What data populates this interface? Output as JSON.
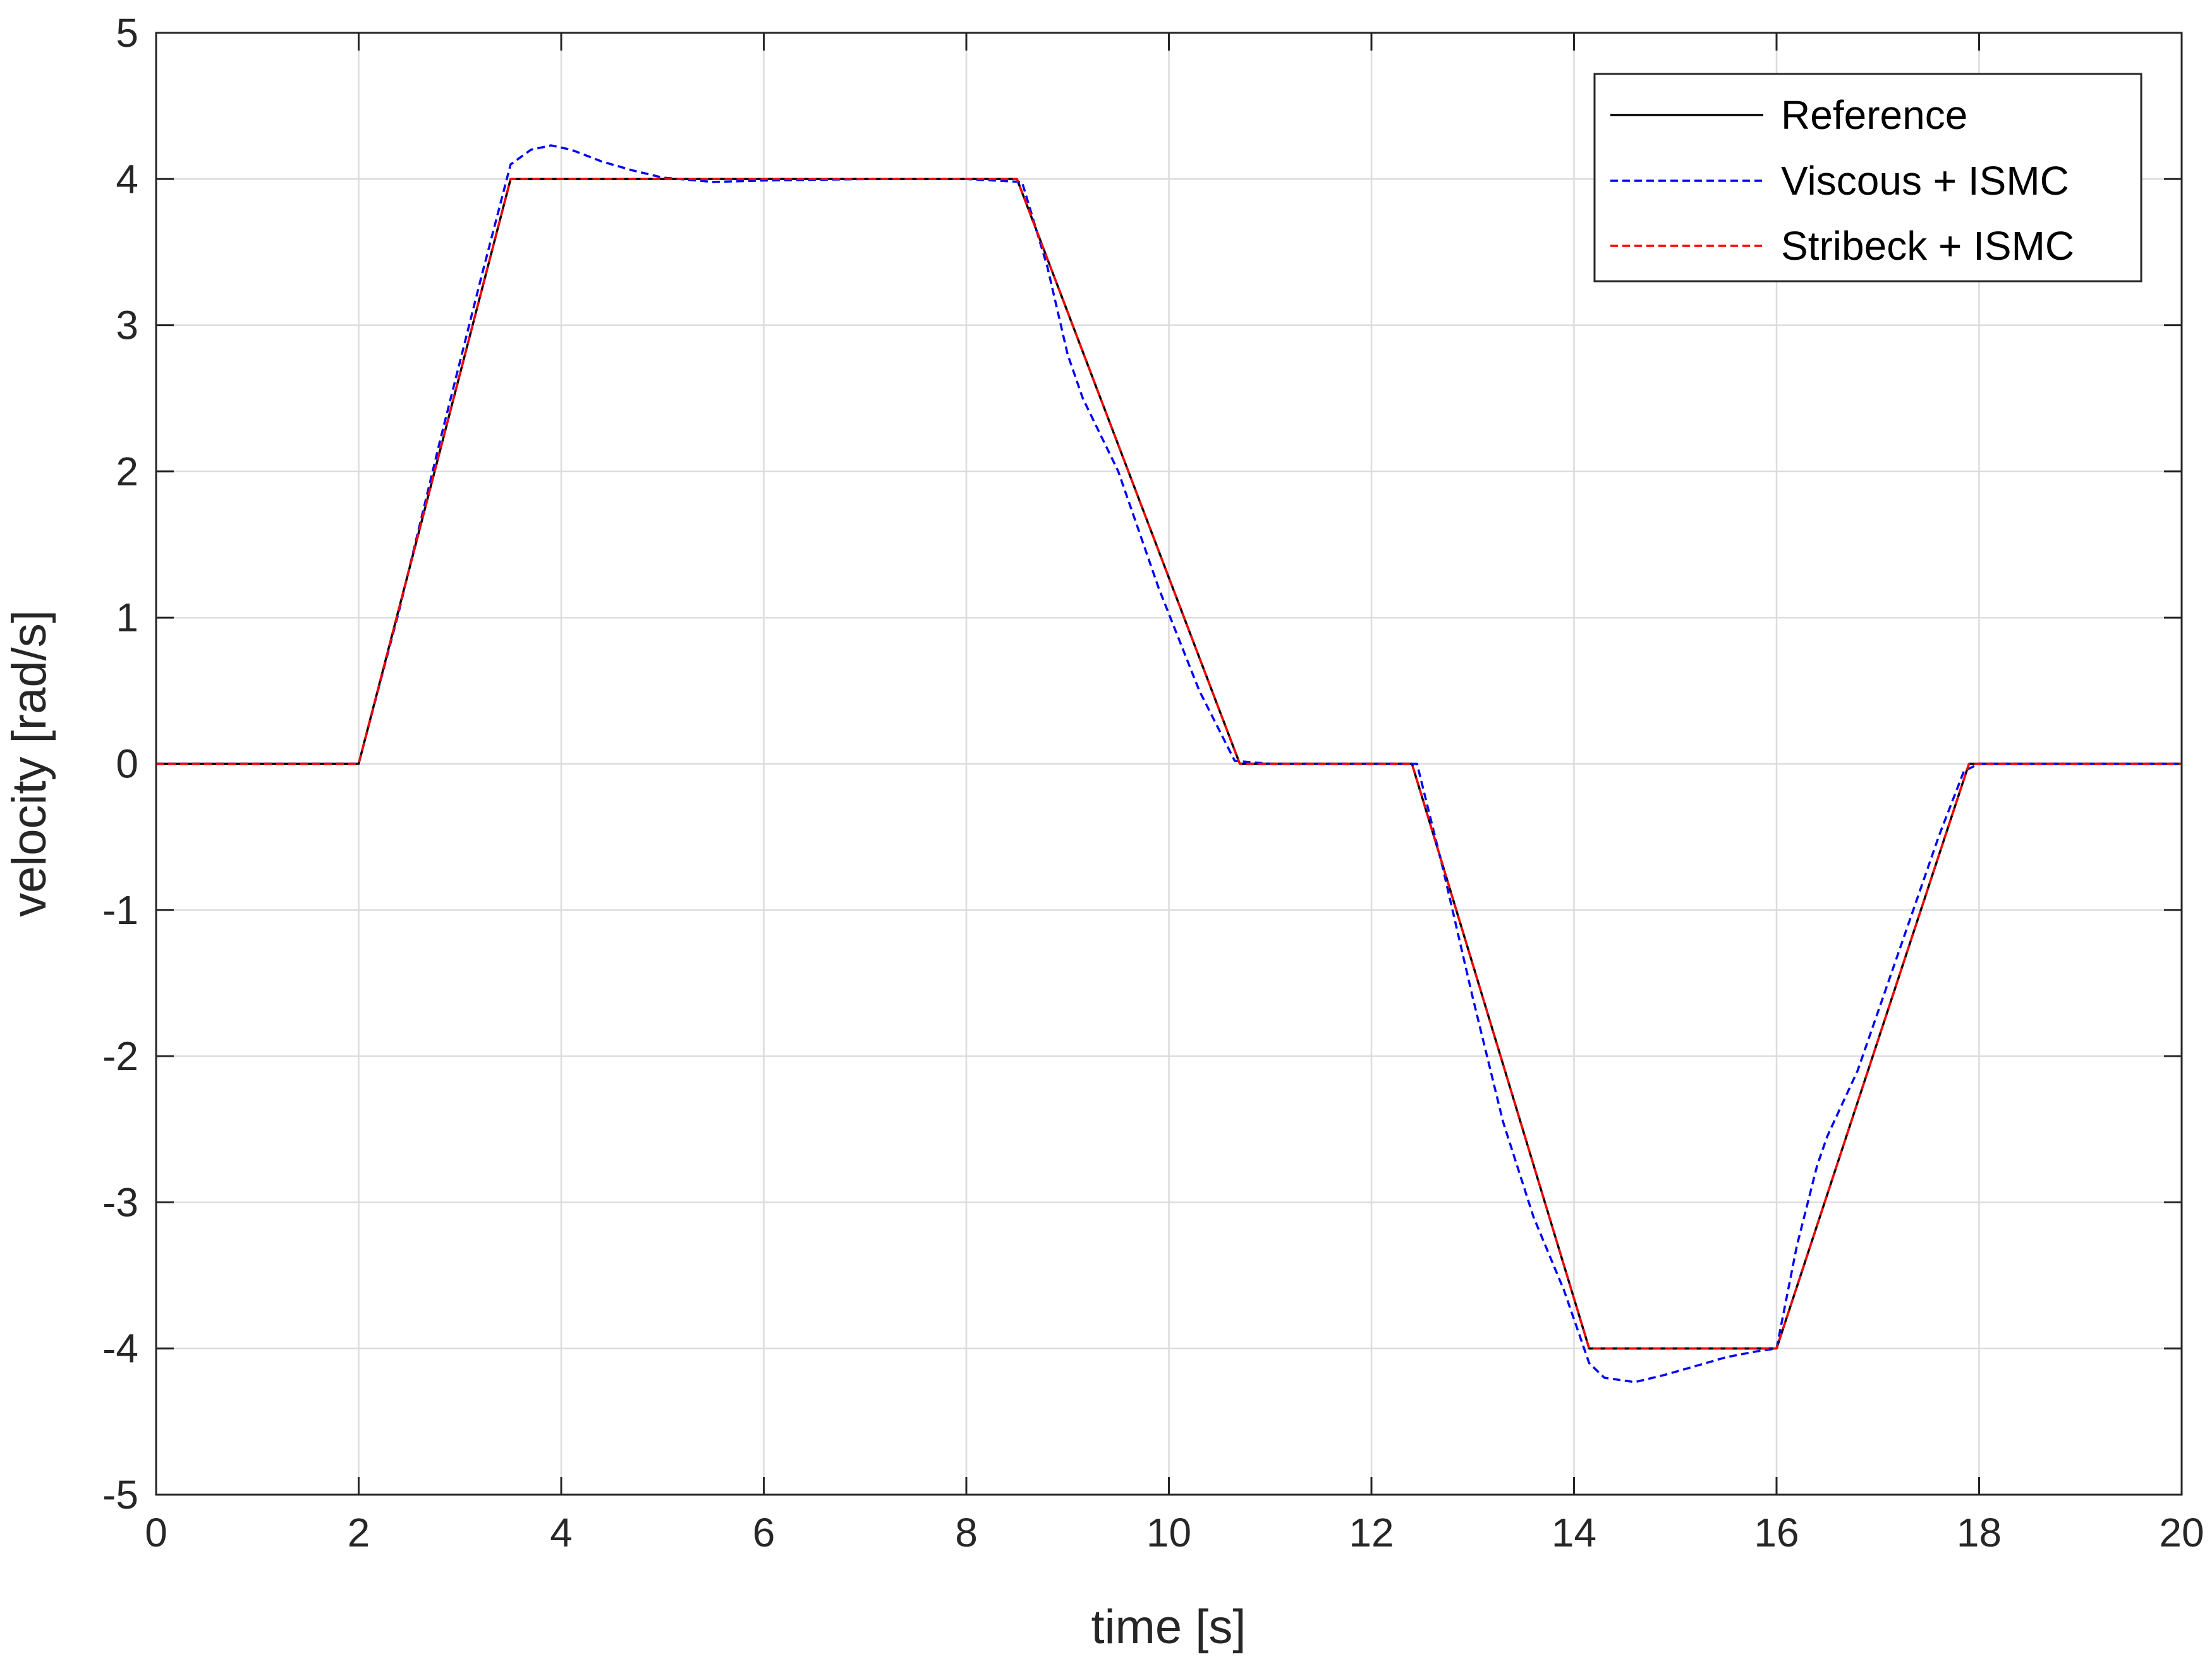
{
  "chart_data": {
    "type": "line",
    "xlabel": "time [s]",
    "ylabel": "velocity [rad/s]",
    "xlim": [
      0,
      20
    ],
    "ylim": [
      -5,
      5
    ],
    "xticks": [
      0,
      2,
      4,
      6,
      8,
      10,
      12,
      14,
      16,
      18,
      20
    ],
    "yticks": [
      -5,
      -4,
      -3,
      -2,
      -1,
      0,
      1,
      2,
      3,
      4,
      5
    ],
    "xtick_labels": [
      "0",
      "2",
      "4",
      "6",
      "8",
      "10",
      "12",
      "14",
      "16",
      "18",
      "20"
    ],
    "ytick_labels": [
      "-5",
      "-4",
      "-3",
      "-2",
      "-1",
      "0",
      "1",
      "2",
      "3",
      "4",
      "5"
    ],
    "grid": true,
    "legend_position": "top-right",
    "series": [
      {
        "name": "Reference",
        "color": "#000000",
        "style": "solid",
        "x": [
          0,
          2,
          3.5,
          8.5,
          10.7,
          12.4,
          14.15,
          16.0,
          17.9,
          20
        ],
        "y": [
          0,
          0,
          4,
          4,
          0,
          0,
          -4,
          -4,
          0,
          0
        ]
      },
      {
        "name": "Viscous + ISMC",
        "color": "#0000ff",
        "style": "dashed",
        "x": [
          0,
          2.0,
          2.4,
          2.8,
          3.2,
          3.5,
          3.7,
          3.9,
          4.1,
          4.4,
          4.7,
          5.0,
          5.5,
          6.0,
          7.0,
          8.0,
          8.55,
          8.8,
          9.0,
          9.15,
          9.5,
          9.9,
          10.3,
          10.65,
          11.0,
          12.0,
          12.45,
          12.7,
          13.0,
          13.3,
          13.6,
          13.9,
          14.15,
          14.3,
          14.6,
          14.9,
          15.2,
          15.5,
          15.8,
          16.0,
          16.2,
          16.4,
          16.5,
          16.8,
          17.2,
          17.6,
          17.85,
          18.0,
          20.0
        ],
        "y": [
          0,
          0,
          1.05,
          2.2,
          3.3,
          4.1,
          4.2,
          4.23,
          4.2,
          4.12,
          4.06,
          4.01,
          3.98,
          3.99,
          4.0,
          4.0,
          3.98,
          3.4,
          2.8,
          2.5,
          2.0,
          1.2,
          0.5,
          0.02,
          0,
          0,
          0,
          -0.7,
          -1.6,
          -2.45,
          -3.1,
          -3.6,
          -4.1,
          -4.2,
          -4.23,
          -4.18,
          -4.12,
          -4.06,
          -4.02,
          -4.0,
          -3.3,
          -2.75,
          -2.55,
          -2.1,
          -1.3,
          -0.5,
          -0.05,
          0,
          0
        ]
      },
      {
        "name": "Stribeck + ISMC",
        "color": "#ff0000",
        "style": "dashed",
        "x": [
          0,
          2,
          3.5,
          8.5,
          10.7,
          12.4,
          14.15,
          16.0,
          17.9,
          20
        ],
        "y": [
          0,
          0,
          4,
          4,
          0,
          0,
          -4,
          -4,
          0,
          0
        ]
      }
    ]
  }
}
